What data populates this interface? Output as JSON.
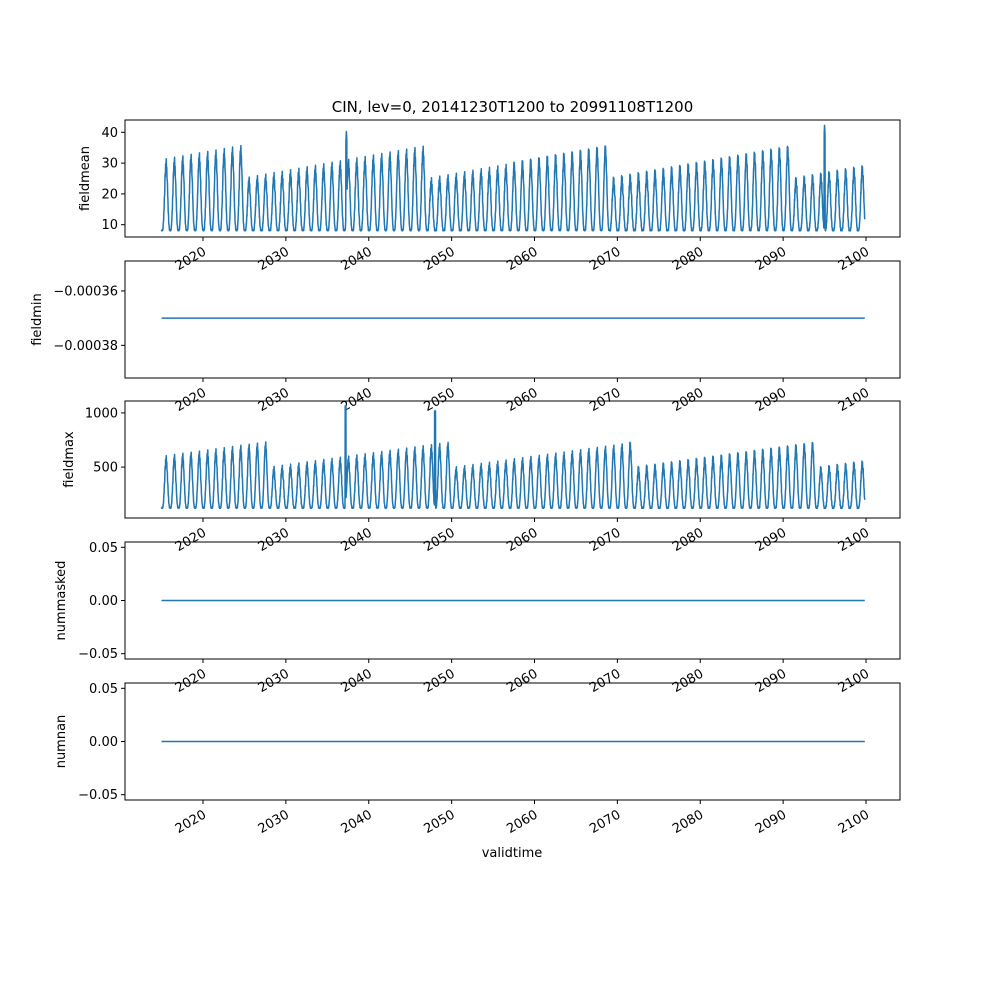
{
  "figure": {
    "title": "CIN, lev=0, 20141230T1200 to 20991108T1200",
    "xlabel": "validtime"
  },
  "chart_data": [
    {
      "type": "line",
      "ylabel": "fieldmean",
      "x_ticks": [
        "2020",
        "2030",
        "2040",
        "2050",
        "2060",
        "2070",
        "2080",
        "2090",
        "2100"
      ],
      "y_ticks": [
        "10",
        "20",
        "30",
        "40"
      ],
      "ylim": [
        6,
        44
      ],
      "x_range": [
        2014.99,
        2099.85
      ],
      "series": [
        {
          "color": "#1f77b4",
          "pattern": "seasonal",
          "min": 8,
          "typical_max": 32,
          "peak_years": [
            2037.3,
            2095.0
          ],
          "peak_values": [
            40.5,
            42.5
          ],
          "x": [
            2014.99,
            2099.85
          ]
        }
      ]
    },
    {
      "type": "line",
      "ylabel": "fieldmin",
      "x_ticks": [
        "2020",
        "2030",
        "2040",
        "2050",
        "2060",
        "2070",
        "2080",
        "2090",
        "2100"
      ],
      "y_ticks": [
        "−0.00036",
        "−0.00038"
      ],
      "ylim": [
        -0.000392,
        -0.000349
      ],
      "series": [
        {
          "color": "#1f77b4",
          "x": [
            2014.99,
            2099.85
          ],
          "y": [
            -0.00037,
            -0.00037
          ]
        }
      ]
    },
    {
      "type": "line",
      "ylabel": "fieldmax",
      "x_ticks": [
        "2020",
        "2030",
        "2040",
        "2050",
        "2060",
        "2070",
        "2080",
        "2090",
        "2100"
      ],
      "y_ticks": [
        "500",
        "1000"
      ],
      "ylim": [
        30,
        1110
      ],
      "series": [
        {
          "color": "#1f77b4",
          "pattern": "seasonal",
          "min": 120,
          "typical_max": 650,
          "peak_years": [
            2037.2,
            2048.0
          ],
          "peak_values": [
            1065,
            1020
          ],
          "x": [
            2014.99,
            2099.85
          ]
        }
      ]
    },
    {
      "type": "line",
      "ylabel": "nummasked",
      "x_ticks": [
        "2020",
        "2030",
        "2040",
        "2050",
        "2060",
        "2070",
        "2080",
        "2090",
        "2100"
      ],
      "y_ticks": [
        "0.05",
        "0.00",
        "−0.05"
      ],
      "ylim": [
        -0.055,
        0.055
      ],
      "series": [
        {
          "color": "#1f77b4",
          "x": [
            2014.99,
            2099.85
          ],
          "y": [
            0,
            0
          ]
        }
      ]
    },
    {
      "type": "line",
      "ylabel": "numnan",
      "x_ticks": [
        "2020",
        "2030",
        "2040",
        "2050",
        "2060",
        "2070",
        "2080",
        "2090",
        "2100"
      ],
      "y_ticks": [
        "0.05",
        "0.00",
        "−0.05"
      ],
      "ylim": [
        -0.055,
        0.055
      ],
      "series": [
        {
          "color": "#1f77b4",
          "x": [
            2014.99,
            2099.85
          ],
          "y": [
            0,
            0
          ]
        }
      ]
    }
  ]
}
